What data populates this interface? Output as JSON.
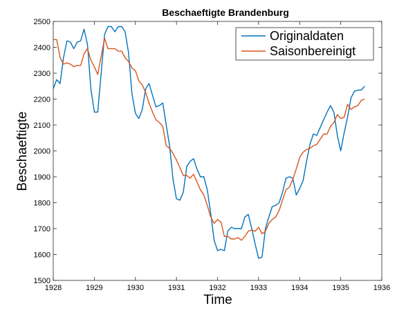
{
  "chart_data": {
    "type": "line",
    "title": "Beschaeftigte Brandenburg",
    "xlabel": "Time",
    "ylabel": "Beschaeftigte",
    "xlim": [
      1928,
      1936
    ],
    "ylim": [
      1500,
      2500
    ],
    "xticks": [
      "1928",
      "1929",
      "1930",
      "1931",
      "1932",
      "1933",
      "1934",
      "1935",
      "1936"
    ],
    "yticks": [
      "1500",
      "1600",
      "1700",
      "1800",
      "1900",
      "2000",
      "2100",
      "2200",
      "2300",
      "2400",
      "2500"
    ],
    "grid": false,
    "legend_position": "top-right",
    "x": [
      1928.0,
      1928.083,
      1928.167,
      1928.25,
      1928.333,
      1928.417,
      1928.5,
      1928.583,
      1928.667,
      1928.75,
      1928.833,
      1928.917,
      1929.0,
      1929.083,
      1929.167,
      1929.25,
      1929.333,
      1929.417,
      1929.5,
      1929.583,
      1929.667,
      1929.75,
      1929.833,
      1929.917,
      1930.0,
      1930.083,
      1930.167,
      1930.25,
      1930.333,
      1930.417,
      1930.5,
      1930.583,
      1930.667,
      1930.75,
      1930.833,
      1930.917,
      1931.0,
      1931.083,
      1931.167,
      1931.25,
      1931.333,
      1931.417,
      1931.5,
      1931.583,
      1931.667,
      1931.75,
      1931.833,
      1931.917,
      1932.0,
      1932.083,
      1932.167,
      1932.25,
      1932.333,
      1932.417,
      1932.5,
      1932.583,
      1932.667,
      1932.75,
      1932.833,
      1932.917,
      1933.0,
      1933.083,
      1933.167,
      1933.25,
      1933.333,
      1933.417,
      1933.5,
      1933.583,
      1933.667,
      1933.75,
      1933.833,
      1933.917,
      1934.0,
      1934.083,
      1934.167,
      1934.25,
      1934.333,
      1934.417,
      1934.5,
      1934.583,
      1934.667,
      1934.75,
      1934.833,
      1934.917,
      1935.0,
      1935.083,
      1935.167,
      1935.25,
      1935.333,
      1935.417,
      1935.5,
      1935.583
    ],
    "series": [
      {
        "name": "Originaldaten",
        "color": "#0072BD",
        "values": [
          2240,
          2275,
          2260,
          2360,
          2425,
          2420,
          2395,
          2420,
          2425,
          2470,
          2410,
          2240,
          2150,
          2150,
          2300,
          2450,
          2480,
          2480,
          2460,
          2480,
          2480,
          2460,
          2380,
          2220,
          2145,
          2125,
          2160,
          2240,
          2260,
          2215,
          2170,
          2175,
          2185,
          2100,
          2020,
          1890,
          1815,
          1810,
          1840,
          1940,
          1960,
          1970,
          1930,
          1900,
          1900,
          1850,
          1760,
          1655,
          1615,
          1620,
          1615,
          1690,
          1705,
          1700,
          1700,
          1700,
          1745,
          1755,
          1700,
          1640,
          1585,
          1590,
          1700,
          1745,
          1785,
          1790,
          1800,
          1840,
          1895,
          1900,
          1895,
          1830,
          1855,
          1885,
          1960,
          2025,
          2065,
          2060,
          2090,
          2120,
          2150,
          2175,
          2150,
          2060,
          2000,
          2070,
          2130,
          2205,
          2230,
          2235,
          2235,
          2250
        ]
      },
      {
        "name": "Saisonbereinigt",
        "color": "#D95319",
        "values": [
          2430,
          2430,
          2360,
          2335,
          2340,
          2335,
          2325,
          2330,
          2330,
          2375,
          2395,
          2350,
          2325,
          2295,
          2365,
          2435,
          2395,
          2395,
          2395,
          2385,
          2385,
          2360,
          2345,
          2320,
          2310,
          2270,
          2255,
          2225,
          2185,
          2150,
          2120,
          2110,
          2095,
          2020,
          2010,
          1990,
          1965,
          1935,
          1905,
          1905,
          1895,
          1910,
          1880,
          1850,
          1830,
          1790,
          1745,
          1720,
          1735,
          1725,
          1670,
          1670,
          1660,
          1660,
          1665,
          1655,
          1670,
          1690,
          1695,
          1690,
          1705,
          1680,
          1690,
          1720,
          1735,
          1745,
          1770,
          1810,
          1850,
          1860,
          1890,
          1930,
          1975,
          1995,
          2005,
          2010,
          2020,
          2025,
          2045,
          2065,
          2065,
          2095,
          2110,
          2140,
          2125,
          2130,
          2180,
          2160,
          2170,
          2175,
          2195,
          2200
        ]
      }
    ]
  }
}
